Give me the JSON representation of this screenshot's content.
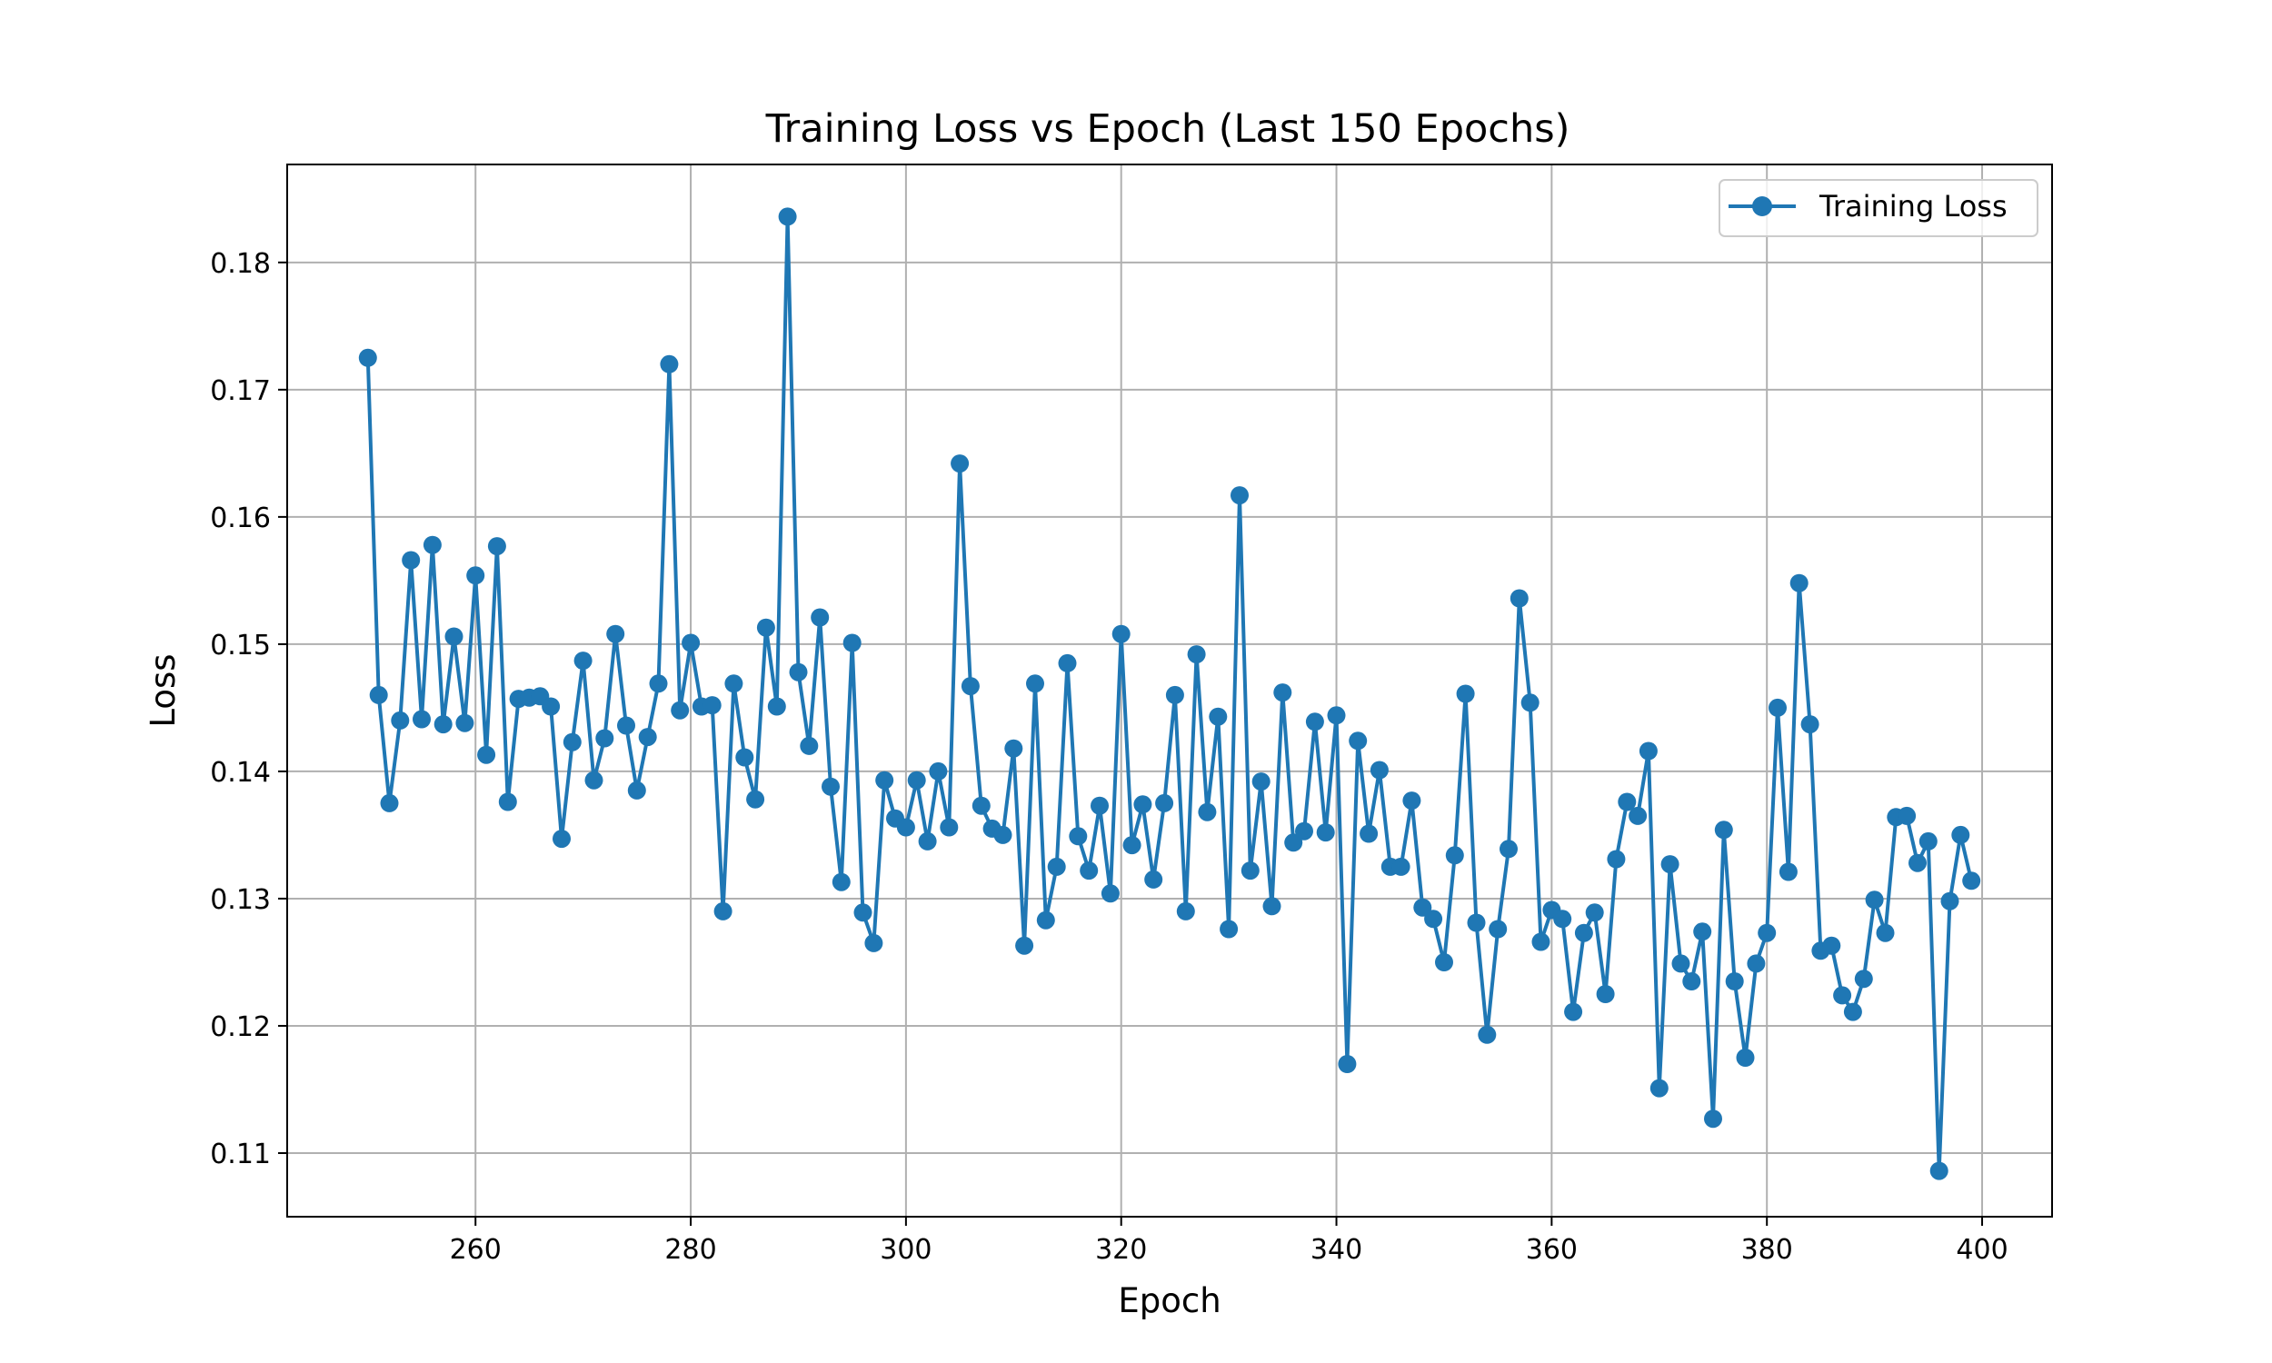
{
  "chart_data": {
    "type": "line",
    "title": "Training Loss vs Epoch (Last 150 Epochs)",
    "xlabel": "Epoch",
    "ylabel": "Loss",
    "xlim": [
      242.5,
      406.5
    ],
    "ylim": [
      0.105,
      0.1877
    ],
    "xticks": [
      260,
      280,
      300,
      320,
      340,
      360,
      380,
      400
    ],
    "yticks": [
      0.11,
      0.12,
      0.13,
      0.14,
      0.15,
      0.16,
      0.17,
      0.18
    ],
    "xtick_labels": [
      "260",
      "280",
      "300",
      "320",
      "340",
      "360",
      "380",
      "400"
    ],
    "ytick_labels": [
      "0.11",
      "0.12",
      "0.13",
      "0.14",
      "0.15",
      "0.16",
      "0.17",
      "0.18"
    ],
    "grid": true,
    "legend_position": "top-right",
    "colors": {
      "series": "#1f77b4",
      "grid": "#b0b0b0",
      "axes": "#000000"
    },
    "series": [
      {
        "name": "Training Loss",
        "marker": "circle",
        "x_start": 250,
        "values": [
          0.1725,
          0.146,
          0.1375,
          0.144,
          0.1566,
          0.1441,
          0.1578,
          0.1437,
          0.1506,
          0.1438,
          0.1554,
          0.1413,
          0.1577,
          0.1376,
          0.1457,
          0.1458,
          0.1459,
          0.1451,
          0.1347,
          0.1423,
          0.1487,
          0.1393,
          0.1426,
          0.1508,
          0.1436,
          0.1385,
          0.1427,
          0.1469,
          0.172,
          0.1448,
          0.1501,
          0.1451,
          0.1452,
          0.129,
          0.1469,
          0.1411,
          0.1378,
          0.1513,
          0.1451,
          0.1836,
          0.1478,
          0.142,
          0.1521,
          0.1388,
          0.1313,
          0.1501,
          0.1289,
          0.1265,
          0.1393,
          0.1363,
          0.1356,
          0.1393,
          0.1345,
          0.14,
          0.1356,
          0.1642,
          0.1467,
          0.1373,
          0.1355,
          0.135,
          0.1418,
          0.1263,
          0.1469,
          0.1283,
          0.1325,
          0.1485,
          0.1349,
          0.1322,
          0.1373,
          0.1304,
          0.1508,
          0.1342,
          0.1374,
          0.1315,
          0.1375,
          0.146,
          0.129,
          0.1492,
          0.1368,
          0.1443,
          0.1276,
          0.1617,
          0.1322,
          0.1392,
          0.1294,
          0.1462,
          0.1344,
          0.1353,
          0.1439,
          0.1352,
          0.1444,
          0.117,
          0.1424,
          0.1351,
          0.1401,
          0.1325,
          0.1325,
          0.1377,
          0.1293,
          0.1284,
          0.125,
          0.1334,
          0.1461,
          0.1281,
          0.1193,
          0.1276,
          0.1339,
          0.1536,
          0.1454,
          0.1266,
          0.1291,
          0.1284,
          0.1211,
          0.1273,
          0.1289,
          0.1225,
          0.1331,
          0.1376,
          0.1365,
          0.1416,
          0.1151,
          0.1327,
          0.1249,
          0.1235,
          0.1274,
          0.1127,
          0.1354,
          0.1235,
          0.1175,
          0.1249,
          0.1273,
          0.145,
          0.1321,
          0.1548,
          0.1437,
          0.1259,
          0.1263,
          0.1224,
          0.1211,
          0.1237,
          0.1299,
          0.1273,
          0.1364,
          0.1365,
          0.1328,
          0.1345,
          0.1086,
          0.1298,
          0.135,
          0.1314
        ]
      }
    ]
  }
}
